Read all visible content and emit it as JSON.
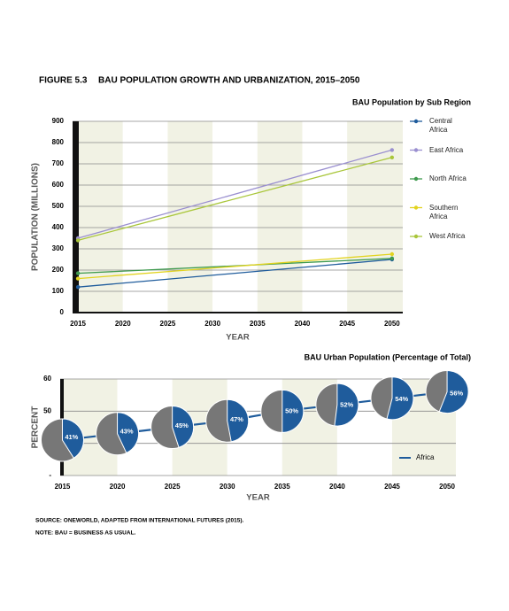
{
  "header": {
    "figure": "FIGURE 5.3",
    "title": "BAU POPULATION GROWTH AND URBANIZATION, 2015–2050"
  },
  "chart_data": [
    {
      "type": "line",
      "title": "BAU Population by Sub Region",
      "y_label": "POPULATION (MILLIONS)",
      "x_label": "YEAR",
      "x": [
        2015,
        2050
      ],
      "xlim": [
        2014.4,
        2051.2
      ],
      "xticks": [
        2015,
        2020,
        2025,
        2030,
        2035,
        2040,
        2045,
        2050
      ],
      "ylim": [
        0,
        900
      ],
      "yticks": [
        0,
        100,
        200,
        300,
        400,
        500,
        600,
        700,
        800,
        900
      ],
      "grid": true,
      "legend": "right",
      "series": [
        {
          "name": "Central Africa",
          "color": "#1f5c9c",
          "values": [
            120,
            250
          ]
        },
        {
          "name": "East Africa",
          "color": "#9a8fd0",
          "values": [
            350,
            765
          ]
        },
        {
          "name": "North Africa",
          "color": "#3f9a4e",
          "values": [
            185,
            255
          ]
        },
        {
          "name": "Southern Africa",
          "color": "#e2d31f",
          "values": [
            160,
            275
          ]
        },
        {
          "name": "West Africa",
          "color": "#a9c63a",
          "values": [
            340,
            730
          ]
        }
      ]
    },
    {
      "type": "pie-line",
      "title": "BAU Urban Population (Percentage of Total)",
      "y_label": "PERCENT",
      "x_label": "YEAR",
      "x": [
        2015,
        2020,
        2025,
        2030,
        2035,
        2040,
        2045,
        2050
      ],
      "xlim": [
        2014.8,
        2050.8
      ],
      "xticks": [
        2015,
        2020,
        2025,
        2030,
        2035,
        2040,
        2045,
        2050
      ],
      "ylim": [
        30,
        60
      ],
      "yticks": [
        60,
        50,
        {
          "value": 40,
          "label": null
        },
        {
          "value": 30,
          "label": "-"
        }
      ],
      "grid": true,
      "legend": "bottom-right",
      "series": [
        {
          "name": "Africa",
          "color": "#1f5c9c",
          "rest_color": "#777777",
          "values": [
            41,
            43,
            45,
            47,
            50,
            52,
            54,
            56
          ],
          "value_labels": [
            "41%",
            "43%",
            "45%",
            "47%",
            "50%",
            "52%",
            "54%",
            "56%"
          ]
        }
      ]
    }
  ],
  "notes": [
    "SOURCE: ONEWORLD, ADAPTED FROM INTERNATIONAL FUTURES (2015).",
    "NOTE: BAU = BUSINESS AS USUAL."
  ]
}
